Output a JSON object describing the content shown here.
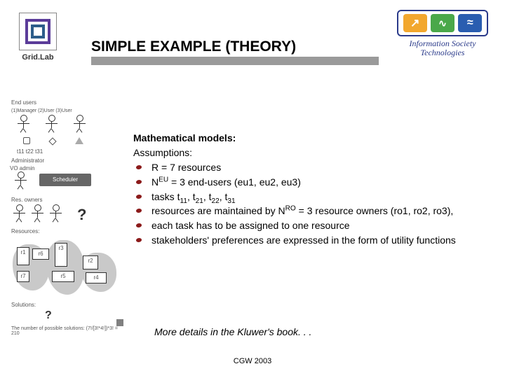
{
  "header": {
    "left_logo_label": "Grid.Lab",
    "title": "SIMPLE EXAMPLE (THEORY)",
    "right_logo_line1": "Information Society",
    "right_logo_line2": "Technologies",
    "title_bar_color": "#9a9a9a",
    "left_logo_colors": {
      "outer": "#5b3c99",
      "inner": "#2d5d8a"
    },
    "ist_cell_colors": [
      "#f2a72e",
      "#4aa84a",
      "#2a5db0"
    ]
  },
  "content": {
    "heading": "Mathematical models:",
    "subheading": "Assumptions:",
    "bullets": [
      "R = 7 resources",
      "N<sup>EU</sup> = 3 end-users (eu1, eu2, eu3)",
      "tasks t<sub>11</sub>, t<sub>21</sub>, t<sub>22</sub>, t<sub>31</sub>",
      "resources are maintained by N<sup>RO</sup> = 3 resource owners (ro1, ro2, ro3),",
      "each task has to be assigned to one resource",
      "stakeholders' preferences are expressed in the form of utility functions"
    ],
    "bullet_color": "#8b1a1a"
  },
  "diagram": {
    "labels": {
      "end_users": "End users",
      "managers": "(1)Manager  (2)User   (3)User",
      "tasks": "t11     t22   t31",
      "admin": "Administrator",
      "vo": "VO admin",
      "scheduler": "Scheduler",
      "res_owners": "Res. owners",
      "resources": "Resources:",
      "solutions": "Solutions:",
      "combo": "The number of possible solutions: (7!/[3!*4!])*3! = 210"
    },
    "resource_boxes": [
      "r1",
      "r6",
      "r3",
      "r7",
      "r5",
      "r2",
      "r4"
    ]
  },
  "footnote": "More details in the Kluwer's book. . .",
  "footer": "CGW 2003"
}
